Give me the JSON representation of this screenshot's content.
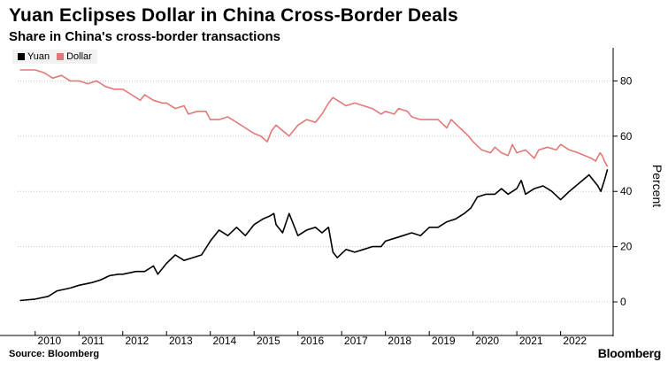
{
  "title": "Yuan Eclipses Dollar in China Cross-Border Deals",
  "subtitle": "Share in China's cross-border transactions",
  "source": "Source: Bloomberg",
  "brand": "Bloomberg",
  "colors": {
    "yuan": "#000000",
    "dollar": "#e07a78",
    "grid": "#c8c8c8"
  },
  "chart_data": {
    "type": "line",
    "title": "Yuan Eclipses Dollar in China Cross-Border Deals",
    "subtitle": "Share in China's cross-border transactions",
    "xlabel": "",
    "ylabel": "Percent",
    "ylim": [
      -8,
      92
    ],
    "yticks": [
      0,
      20,
      40,
      60,
      80
    ],
    "xlim": [
      2009.6,
      2023.2
    ],
    "xticks": [
      "2010",
      "2011",
      "2012",
      "2013",
      "2014",
      "2015",
      "2016",
      "2017",
      "2018",
      "2019",
      "2020",
      "2021",
      "2022"
    ],
    "grid": true,
    "legend_position": "top-left",
    "series": [
      {
        "name": "Yuan",
        "points": [
          [
            2009.65,
            0.5
          ],
          [
            2010.0,
            1
          ],
          [
            2010.3,
            2
          ],
          [
            2010.5,
            4
          ],
          [
            2010.8,
            5
          ],
          [
            2011.0,
            6
          ],
          [
            2011.3,
            7
          ],
          [
            2011.5,
            8
          ],
          [
            2011.7,
            9.5
          ],
          [
            2011.9,
            10
          ],
          [
            2012.0,
            10
          ],
          [
            2012.3,
            11
          ],
          [
            2012.5,
            11
          ],
          [
            2012.7,
            13
          ],
          [
            2012.8,
            10
          ],
          [
            2013.0,
            14
          ],
          [
            2013.2,
            17
          ],
          [
            2013.4,
            15
          ],
          [
            2013.6,
            16
          ],
          [
            2013.8,
            17
          ],
          [
            2014.0,
            22
          ],
          [
            2014.2,
            26
          ],
          [
            2014.4,
            24
          ],
          [
            2014.6,
            27
          ],
          [
            2014.8,
            24
          ],
          [
            2015.0,
            28
          ],
          [
            2015.2,
            30
          ],
          [
            2015.35,
            31
          ],
          [
            2015.45,
            32
          ],
          [
            2015.5,
            28
          ],
          [
            2015.65,
            25
          ],
          [
            2015.8,
            32
          ],
          [
            2016.0,
            24
          ],
          [
            2016.2,
            26
          ],
          [
            2016.4,
            27
          ],
          [
            2016.55,
            25
          ],
          [
            2016.7,
            27
          ],
          [
            2016.8,
            18
          ],
          [
            2016.9,
            16
          ],
          [
            2017.1,
            19
          ],
          [
            2017.3,
            18
          ],
          [
            2017.5,
            19
          ],
          [
            2017.7,
            20
          ],
          [
            2017.9,
            20
          ],
          [
            2018.0,
            22
          ],
          [
            2018.2,
            23
          ],
          [
            2018.4,
            24
          ],
          [
            2018.6,
            25
          ],
          [
            2018.8,
            24
          ],
          [
            2019.0,
            27
          ],
          [
            2019.2,
            27
          ],
          [
            2019.4,
            29
          ],
          [
            2019.6,
            30
          ],
          [
            2019.8,
            32
          ],
          [
            2019.95,
            34
          ],
          [
            2020.1,
            38
          ],
          [
            2020.3,
            39
          ],
          [
            2020.5,
            39
          ],
          [
            2020.65,
            41
          ],
          [
            2020.8,
            39
          ],
          [
            2021.0,
            41
          ],
          [
            2021.1,
            44
          ],
          [
            2021.2,
            39
          ],
          [
            2021.4,
            41
          ],
          [
            2021.6,
            42
          ],
          [
            2021.8,
            40
          ],
          [
            2022.0,
            37
          ],
          [
            2022.2,
            40
          ],
          [
            2022.35,
            42
          ],
          [
            2022.5,
            44
          ],
          [
            2022.65,
            46
          ],
          [
            2022.75,
            44
          ],
          [
            2022.85,
            42
          ],
          [
            2022.92,
            40
          ],
          [
            2023.0,
            44
          ],
          [
            2023.07,
            48
          ]
        ]
      },
      {
        "name": "Dollar",
        "points": [
          [
            2009.65,
            84
          ],
          [
            2010.0,
            84
          ],
          [
            2010.2,
            83
          ],
          [
            2010.4,
            81
          ],
          [
            2010.6,
            82
          ],
          [
            2010.8,
            80
          ],
          [
            2011.0,
            80
          ],
          [
            2011.2,
            79
          ],
          [
            2011.4,
            80
          ],
          [
            2011.6,
            78
          ],
          [
            2011.8,
            77
          ],
          [
            2012.0,
            77
          ],
          [
            2012.2,
            75
          ],
          [
            2012.4,
            73
          ],
          [
            2012.5,
            75
          ],
          [
            2012.7,
            73
          ],
          [
            2012.9,
            72
          ],
          [
            2013.0,
            72
          ],
          [
            2013.2,
            70
          ],
          [
            2013.4,
            71
          ],
          [
            2013.5,
            68
          ],
          [
            2013.7,
            69
          ],
          [
            2013.9,
            69
          ],
          [
            2014.0,
            66
          ],
          [
            2014.2,
            66
          ],
          [
            2014.4,
            67
          ],
          [
            2014.6,
            65
          ],
          [
            2014.8,
            63
          ],
          [
            2015.0,
            61
          ],
          [
            2015.15,
            60
          ],
          [
            2015.3,
            58
          ],
          [
            2015.4,
            62
          ],
          [
            2015.5,
            64
          ],
          [
            2015.65,
            62
          ],
          [
            2015.8,
            60
          ],
          [
            2016.0,
            64
          ],
          [
            2016.2,
            66
          ],
          [
            2016.4,
            65
          ],
          [
            2016.55,
            68
          ],
          [
            2016.7,
            72
          ],
          [
            2016.8,
            74
          ],
          [
            2016.9,
            73
          ],
          [
            2017.1,
            71
          ],
          [
            2017.3,
            72
          ],
          [
            2017.5,
            71
          ],
          [
            2017.7,
            70
          ],
          [
            2017.9,
            68
          ],
          [
            2018.0,
            69
          ],
          [
            2018.2,
            68
          ],
          [
            2018.3,
            70
          ],
          [
            2018.5,
            69
          ],
          [
            2018.6,
            67
          ],
          [
            2018.8,
            66
          ],
          [
            2019.0,
            66
          ],
          [
            2019.2,
            66
          ],
          [
            2019.4,
            63
          ],
          [
            2019.5,
            66
          ],
          [
            2019.7,
            63
          ],
          [
            2019.9,
            60
          ],
          [
            2020.0,
            58
          ],
          [
            2020.2,
            55
          ],
          [
            2020.4,
            54
          ],
          [
            2020.5,
            56
          ],
          [
            2020.65,
            54
          ],
          [
            2020.8,
            53
          ],
          [
            2020.9,
            57
          ],
          [
            2021.0,
            54
          ],
          [
            2021.2,
            55
          ],
          [
            2021.4,
            52
          ],
          [
            2021.5,
            55
          ],
          [
            2021.7,
            56
          ],
          [
            2021.9,
            55
          ],
          [
            2022.0,
            57
          ],
          [
            2022.2,
            55
          ],
          [
            2022.4,
            54
          ],
          [
            2022.55,
            53
          ],
          [
            2022.7,
            52
          ],
          [
            2022.8,
            51
          ],
          [
            2022.9,
            54
          ],
          [
            2022.95,
            53
          ],
          [
            2023.0,
            51
          ],
          [
            2023.07,
            49
          ]
        ]
      }
    ]
  }
}
